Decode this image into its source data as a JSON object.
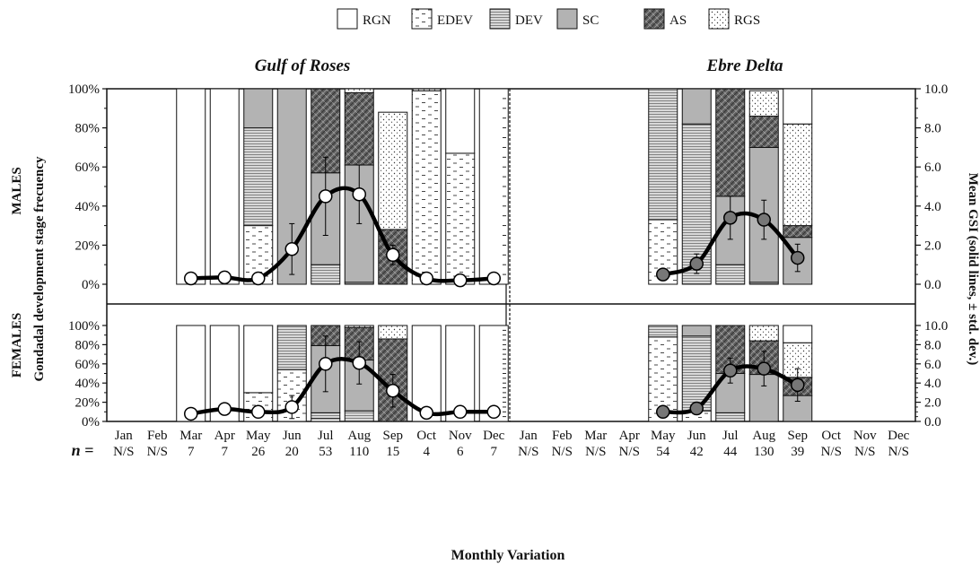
{
  "chart_data": {
    "type": "bar",
    "title": "",
    "xlabel": "Monthly Variation",
    "ylabel_left": "Gondadal development stage frecuency",
    "ylabel_right": "Mean GSI (solid lines, ± std. dev.)",
    "ylim_left": [
      0,
      100
    ],
    "ylim_right": [
      0,
      10
    ],
    "y_ticks_left": [
      "0%",
      "20%",
      "40%",
      "60%",
      "80%",
      "100%"
    ],
    "y_ticks_right": [
      "0.0",
      "2.0",
      "4.0",
      "6.0",
      "8.0",
      "10.0"
    ],
    "n_label": "n =",
    "legend_position": "top",
    "stages": [
      {
        "key": "RGN",
        "label": "RGN",
        "fill": "#ffffff"
      },
      {
        "key": "EDEV",
        "label": "EDEV",
        "fill": "#ffffff",
        "pattern": "dashes"
      },
      {
        "key": "DEV",
        "label": "DEV",
        "fill": "#d8d8d8",
        "pattern": "horizontal lines"
      },
      {
        "key": "SC",
        "label": "SC",
        "fill": "#b3b3b3"
      },
      {
        "key": "AS",
        "label": "AS",
        "fill": "#5a5a5a",
        "pattern": "crosshatch"
      },
      {
        "key": "RGS",
        "label": "RGS",
        "fill": "#ffffff",
        "pattern": "dots"
      }
    ],
    "sites": [
      {
        "name": "Gulf of Roses",
        "gsi_marker_fill": "#ffffff",
        "months": [
          "Jan",
          "Feb",
          "Mar",
          "Apr",
          "May",
          "Jun",
          "Jul",
          "Aug",
          "Sep",
          "Oct",
          "Nov",
          "Dec"
        ],
        "n": [
          "N/S",
          "N/S",
          "7",
          "7",
          "26",
          "20",
          "53",
          "110",
          "15",
          "4",
          "6",
          "7"
        ]
      },
      {
        "name": "Ebre Delta",
        "gsi_marker_fill": "#777777",
        "months": [
          "Jan",
          "Feb",
          "Mar",
          "Apr",
          "May",
          "Jun",
          "Jul",
          "Aug",
          "Sep",
          "Oct",
          "Nov",
          "Dec"
        ],
        "n": [
          "N/S",
          "N/S",
          "N/S",
          "N/S",
          "54",
          "42",
          "44",
          "130",
          "39",
          "N/S",
          "N/S",
          "N/S"
        ]
      }
    ],
    "panels": [
      {
        "name": "MALES",
        "sites": [
          {
            "stages": {
              "RGN": [
                null,
                null,
                100,
                100,
                0,
                0,
                0,
                0,
                0,
                0,
                33,
                100
              ],
              "EDEV": [
                null,
                null,
                0,
                0,
                30,
                0,
                0,
                0,
                0,
                99,
                67,
                0
              ],
              "DEV": [
                null,
                null,
                0,
                0,
                50,
                0,
                10,
                1,
                0,
                0,
                0,
                0
              ],
              "SC": [
                null,
                null,
                0,
                0,
                20,
                100,
                47,
                60,
                0,
                0,
                0,
                0
              ],
              "AS": [
                null,
                null,
                0,
                0,
                0,
                0,
                43,
                37,
                28,
                0,
                0,
                0
              ],
              "RGS": [
                null,
                null,
                0,
                0,
                0,
                0,
                0,
                2,
                60,
                1,
                0,
                0
              ]
            },
            "gsi": [
              null,
              null,
              0.3,
              0.35,
              0.3,
              1.8,
              4.5,
              4.6,
              1.5,
              0.3,
              0.2,
              0.3
            ],
            "gsi_err": [
              null,
              null,
              0.2,
              0.2,
              0.2,
              1.3,
              2.0,
              1.5,
              0.5,
              0.2,
              0.1,
              0.1
            ]
          },
          {
            "stages": {
              "RGN": [
                null,
                null,
                null,
                null,
                0,
                0,
                0,
                0,
                18
              ],
              "EDEV": [
                null,
                null,
                null,
                null,
                33,
                0,
                0,
                0,
                0
              ],
              "DEV": [
                null,
                null,
                null,
                null,
                67,
                82,
                10,
                1,
                0
              ],
              "SC": [
                null,
                null,
                null,
                null,
                0,
                18,
                35,
                69,
                24
              ],
              "AS": [
                null,
                null,
                null,
                null,
                0,
                0,
                55,
                16,
                6
              ],
              "RGS": [
                null,
                null,
                null,
                null,
                0,
                0,
                0,
                13,
                52
              ]
            },
            "gsi": [
              null,
              null,
              null,
              null,
              0.5,
              1.05,
              3.4,
              3.3,
              1.35
            ],
            "gsi_err": [
              null,
              null,
              null,
              null,
              0.2,
              0.5,
              1.1,
              1.0,
              0.7
            ]
          }
        ]
      },
      {
        "name": "FEMALES",
        "sites": [
          {
            "stages": {
              "RGN": [
                null,
                null,
                100,
                100,
                70,
                0,
                0,
                0,
                0,
                100,
                100,
                100
              ],
              "EDEV": [
                null,
                null,
                0,
                0,
                30,
                54,
                3,
                0,
                0,
                0,
                0,
                0
              ],
              "DEV": [
                null,
                null,
                0,
                0,
                0,
                46,
                6,
                11,
                0,
                0,
                0,
                0
              ],
              "SC": [
                null,
                null,
                0,
                0,
                0,
                0,
                70,
                53,
                0,
                0,
                0,
                0
              ],
              "AS": [
                null,
                null,
                0,
                0,
                0,
                0,
                21,
                34,
                86,
                0,
                0,
                0
              ],
              "RGS": [
                null,
                null,
                0,
                0,
                0,
                0,
                0,
                2,
                14,
                0,
                0,
                0
              ]
            },
            "gsi": [
              null,
              null,
              0.8,
              1.3,
              1.0,
              1.5,
              6.0,
              6.1,
              3.2,
              0.9,
              1.0,
              1.0
            ],
            "gsi_err": [
              null,
              null,
              0.4,
              0.2,
              0.3,
              1.2,
              2.9,
              2.2,
              1.7,
              0.1,
              0.1,
              0.1
            ]
          },
          {
            "stages": {
              "RGN": [
                null,
                null,
                null,
                null,
                0,
                0,
                0,
                0,
                18
              ],
              "EDEV": [
                null,
                null,
                null,
                null,
                88,
                11,
                0,
                0,
                0
              ],
              "DEV": [
                null,
                null,
                null,
                null,
                12,
                78,
                9,
                0,
                0
              ],
              "SC": [
                null,
                null,
                null,
                null,
                0,
                11,
                41,
                49,
                27
              ],
              "AS": [
                null,
                null,
                null,
                null,
                0,
                0,
                50,
                35,
                19
              ],
              "RGS": [
                null,
                null,
                null,
                null,
                0,
                0,
                0,
                16,
                36
              ]
            },
            "gsi": [
              null,
              null,
              null,
              null,
              1.0,
              1.35,
              5.3,
              5.5,
              3.8
            ],
            "gsi_err": [
              null,
              null,
              null,
              null,
              0.3,
              0.5,
              1.3,
              1.8,
              1.7
            ]
          }
        ]
      }
    ]
  }
}
